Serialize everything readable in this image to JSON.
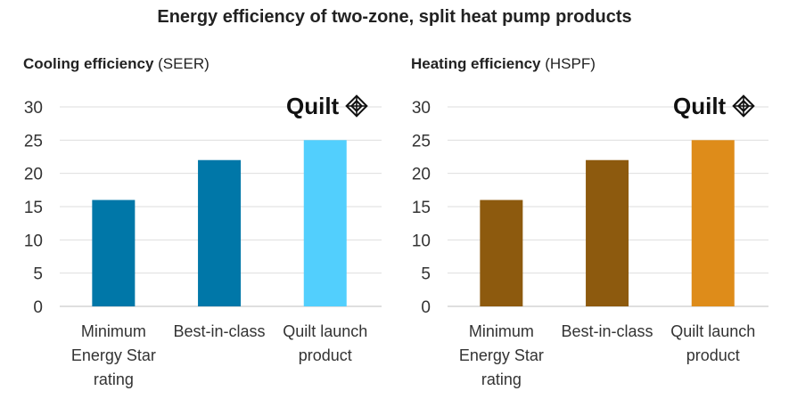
{
  "title": "Energy efficiency of two-zone, split heat pump products",
  "brand": {
    "name": "Quilt",
    "icon": "quilt-logo-icon"
  },
  "chart_data": [
    {
      "type": "bar",
      "subtitle_bold": "Cooling efficiency",
      "subtitle_unit": " (SEER)",
      "categories": [
        [
          "Minimum",
          "Energy Star",
          "rating"
        ],
        [
          "Best-in-class"
        ],
        [
          "Quilt launch",
          "product"
        ]
      ],
      "values": [
        16,
        22,
        25
      ],
      "colors": [
        "#0077a8",
        "#0077a8",
        "#52cffd"
      ],
      "ylim": [
        0,
        30
      ],
      "yticks": [
        0,
        5,
        10,
        15,
        20,
        25,
        30
      ],
      "grid": true
    },
    {
      "type": "bar",
      "subtitle_bold": "Heating efficiency",
      "subtitle_unit": " (HSPF)",
      "categories": [
        [
          "Minimum",
          "Energy Star",
          "rating"
        ],
        [
          "Best-in-class"
        ],
        [
          "Quilt launch",
          "product"
        ]
      ],
      "values": [
        16,
        22,
        25
      ],
      "colors": [
        "#8d5a0e",
        "#8d5a0e",
        "#de8c1a"
      ],
      "ylim": [
        0,
        30
      ],
      "yticks": [
        0,
        5,
        10,
        15,
        20,
        25,
        30
      ],
      "grid": true
    }
  ]
}
